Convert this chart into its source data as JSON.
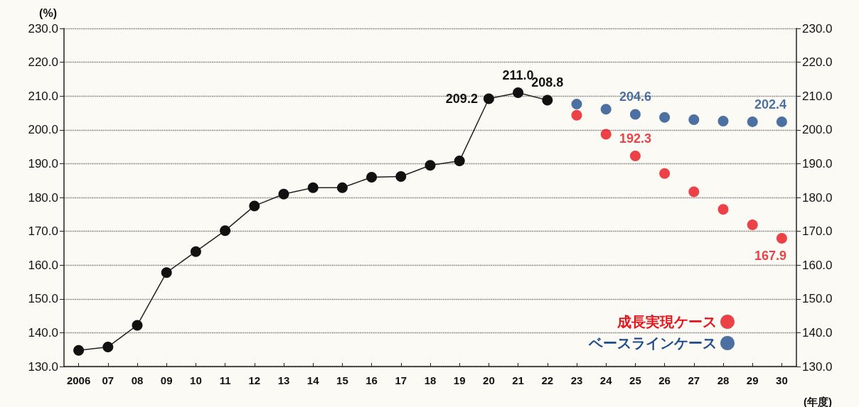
{
  "chart_data": {
    "type": "line",
    "ylabel": "(%)",
    "xlabel": "(年度)",
    "categories": [
      "2006",
      "07",
      "08",
      "09",
      "10",
      "11",
      "12",
      "13",
      "14",
      "15",
      "16",
      "17",
      "18",
      "19",
      "20",
      "21",
      "22",
      "23",
      "24",
      "25",
      "26",
      "27",
      "28",
      "29",
      "30"
    ],
    "series": [
      {
        "color": "#111111",
        "values": [
          134.8,
          135.8,
          142.2,
          157.8,
          164.0,
          170.2,
          177.5,
          181.0,
          182.9,
          182.9,
          186.0,
          186.2,
          189.5,
          190.8,
          209.2,
          211.0,
          208.8,
          null,
          null,
          null,
          null,
          null,
          null,
          null,
          null
        ],
        "value_labels": [
          null,
          null,
          null,
          null,
          null,
          null,
          null,
          null,
          null,
          null,
          null,
          null,
          null,
          null,
          "209.2",
          "211.0",
          "208.8",
          null,
          null,
          null,
          null,
          null,
          null,
          null,
          null
        ]
      },
      {
        "type": "scatter",
        "name": "成長実現ケース",
        "color": "#e8141b",
        "values": [
          null,
          null,
          null,
          null,
          null,
          null,
          null,
          null,
          null,
          null,
          null,
          null,
          null,
          null,
          null,
          null,
          null,
          204.3,
          198.7,
          192.3,
          187.1,
          181.7,
          176.5,
          171.9,
          167.9
        ],
        "value_labels": [
          null,
          null,
          null,
          null,
          null,
          null,
          null,
          null,
          null,
          null,
          null,
          null,
          null,
          null,
          null,
          null,
          null,
          null,
          null,
          "192.3",
          null,
          null,
          null,
          null,
          "167.9"
        ]
      },
      {
        "type": "scatter",
        "name": "ベースラインケース",
        "color": "#1f4e8c",
        "values": [
          null,
          null,
          null,
          null,
          null,
          null,
          null,
          null,
          null,
          null,
          null,
          null,
          null,
          null,
          null,
          null,
          null,
          207.6,
          206.1,
          204.6,
          203.7,
          203.0,
          202.6,
          202.4,
          202.4
        ],
        "value_labels": [
          null,
          null,
          null,
          null,
          null,
          null,
          null,
          null,
          null,
          null,
          null,
          null,
          null,
          null,
          null,
          null,
          null,
          null,
          null,
          "204.6",
          null,
          null,
          null,
          null,
          "202.4"
        ]
      }
    ],
    "ylim": [
      130,
      230
    ],
    "yticks": [
      {
        "value": 130,
        "label": "130.0"
      },
      {
        "value": 140,
        "label": "140.0"
      },
      {
        "value": 150,
        "label": "150.0"
      },
      {
        "value": 160,
        "label": "160.0"
      },
      {
        "value": 170,
        "label": "170.0"
      },
      {
        "value": 180,
        "label": "180.0"
      },
      {
        "value": 190,
        "label": "190.0"
      },
      {
        "value": 200,
        "label": "200.0"
      },
      {
        "value": 210,
        "label": "210.0"
      },
      {
        "value": 220,
        "label": "220.0"
      },
      {
        "value": 230,
        "label": "230.0"
      }
    ],
    "y2lim": [
      130,
      230
    ],
    "y2ticks": [
      {
        "value": 130,
        "label": "130.0"
      },
      {
        "value": 140,
        "label": "140.0"
      },
      {
        "value": 150,
        "label": "150.0"
      },
      {
        "value": 160,
        "label": "160.0"
      },
      {
        "value": 170,
        "label": "170.0"
      },
      {
        "value": 180,
        "label": "180.0"
      },
      {
        "value": 190,
        "label": "190.0"
      },
      {
        "value": 200,
        "label": "200.0"
      },
      {
        "value": 210,
        "label": "210.0"
      },
      {
        "value": 220,
        "label": "220.0"
      },
      {
        "value": 230,
        "label": "230.0"
      }
    ],
    "grid": "y",
    "legend": "bottom right",
    "marker": "circle"
  }
}
